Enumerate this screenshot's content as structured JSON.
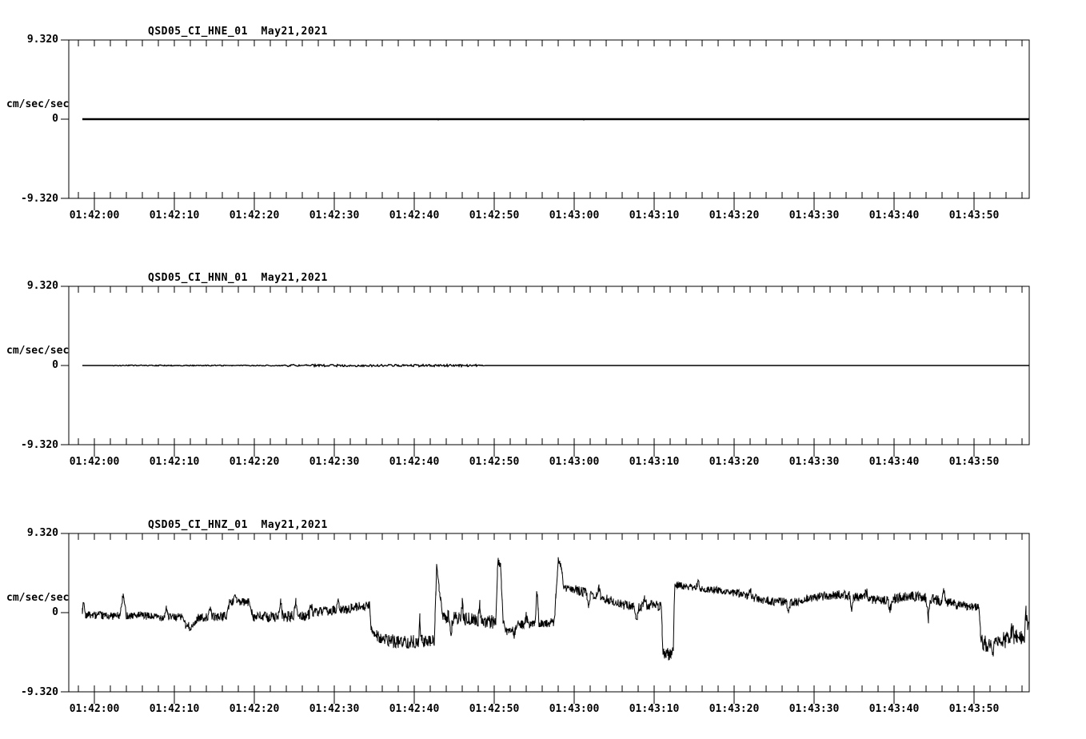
{
  "figure": {
    "background": "#ffffff",
    "foreground": "#000000",
    "unit_label": "cm/sec/sec",
    "y_max_label": "9.320",
    "y_zero_label": "0",
    "y_min_label": "-9.320",
    "x_tick_labels": [
      "01:42:00",
      "01:42:10",
      "01:42:20",
      "01:42:30",
      "01:42:40",
      "01:42:50",
      "01:43:00",
      "01:43:10",
      "01:43:20",
      "01:43:30",
      "01:43:40",
      "01:43:50"
    ]
  },
  "chart_data": [
    {
      "type": "line",
      "title": "QSD05_CI_HNE_01  May21,2021",
      "station_channel": "QSD05_CI_HNE_01",
      "date": "May21,2021",
      "ylabel": "cm/sec/sec",
      "ylim": [
        -9.32,
        9.32
      ],
      "y_ticks": [
        9.32,
        0,
        -9.32
      ],
      "x_ticks_sec": [
        0,
        10,
        20,
        30,
        40,
        50,
        60,
        70,
        80,
        90,
        100,
        110
      ],
      "x_minor_step_sec": 2,
      "x_range_sec": [
        -3.2,
        116.9
      ],
      "trace_range_sec": [
        -1.5,
        116.9
      ],
      "description": "flat trace at zero amplitude",
      "baseline": 0,
      "blips": [
        [
          43.0,
          -0.15
        ],
        [
          61.2,
          -0.15
        ]
      ]
    },
    {
      "type": "line",
      "title": "QSD05_CI_HNN_01  May21,2021",
      "station_channel": "QSD05_CI_HNN_01",
      "date": "May21,2021",
      "ylabel": "cm/sec/sec",
      "ylim": [
        -9.32,
        9.32
      ],
      "y_ticks": [
        9.32,
        0,
        -9.32
      ],
      "x_ticks_sec": [
        0,
        10,
        20,
        30,
        40,
        50,
        60,
        70,
        80,
        90,
        100,
        110
      ],
      "x_minor_step_sec": 2,
      "x_range_sec": [
        -3.2,
        116.9
      ],
      "trace_range_sec": [
        -1.5,
        116.9
      ],
      "description": "flat trace at zero with faint micro-noise fuzz between ~01:42:02 and ~01:42:49, densest 01:42:24-01:42:48",
      "baseline": 0,
      "noise_bands": [
        [
          -1.5,
          2.2,
          0.02
        ],
        [
          2.2,
          24.2,
          0.06
        ],
        [
          24.2,
          48.2,
          0.13
        ],
        [
          48.2,
          48.9,
          0.05
        ],
        [
          48.9,
          116.9,
          0.02
        ]
      ]
    },
    {
      "type": "line",
      "title": "QSD05_CI_HNZ_01  May21,2021",
      "station_channel": "QSD05_CI_HNZ_01",
      "date": "May21,2021",
      "ylabel": "cm/sec/sec",
      "ylim": [
        -9.32,
        9.32
      ],
      "y_ticks": [
        9.32,
        0,
        -9.32
      ],
      "x_ticks_sec": [
        0,
        10,
        20,
        30,
        40,
        50,
        60,
        70,
        80,
        90,
        100,
        110
      ],
      "x_minor_step_sec": 2,
      "x_range_sec": [
        -3.2,
        116.9
      ],
      "trace_range_sec": [
        -1.5,
        116.9
      ],
      "description": "noisy drifting trace: step down ~01:42:34, sharp spikes ~+6 cm/s/s at 01:42:43/01:42:50/01:42:58, deep dip ~-5 at 01:43:11 then jump to +3 with slow decay, final drop to ~-3.5 at 01:43:51",
      "base_points": [
        [
          -1.5,
          -0.2
        ],
        [
          2,
          -0.4
        ],
        [
          5,
          -0.3
        ],
        [
          8,
          -0.5
        ],
        [
          11.1,
          -0.5
        ],
        [
          11.4,
          -1.6
        ],
        [
          12.4,
          -1.6
        ],
        [
          12.9,
          -0.6
        ],
        [
          16.5,
          -0.4
        ],
        [
          16.9,
          1.2
        ],
        [
          19.4,
          1.2
        ],
        [
          19.9,
          -0.5
        ],
        [
          24,
          -0.5
        ],
        [
          27,
          -0.3
        ],
        [
          28,
          0.1
        ],
        [
          31,
          0.3
        ],
        [
          33.5,
          0.8
        ],
        [
          34.4,
          0.8
        ],
        [
          34.6,
          -1.8
        ],
        [
          36,
          -3.2
        ],
        [
          38,
          -3.4
        ],
        [
          42.5,
          -3.4
        ],
        [
          42.8,
          5.4
        ],
        [
          43.2,
          2.0
        ],
        [
          43.6,
          -0.5
        ],
        [
          45,
          -0.6
        ],
        [
          47,
          -0.8
        ],
        [
          49,
          -1.0
        ],
        [
          50.2,
          -1.1
        ],
        [
          50.45,
          6.1
        ],
        [
          50.8,
          5.3
        ],
        [
          51.1,
          -1.0
        ],
        [
          51.5,
          -2.2
        ],
        [
          53,
          -1.4
        ],
        [
          55.1,
          -1.3
        ],
        [
          55.35,
          2.9
        ],
        [
          55.6,
          -1.2
        ],
        [
          57.5,
          -1.2
        ],
        [
          58.0,
          6.1
        ],
        [
          58.35,
          5.5
        ],
        [
          58.7,
          2.9
        ],
        [
          60,
          2.7
        ],
        [
          62,
          2.2
        ],
        [
          64,
          1.6
        ],
        [
          66,
          0.9
        ],
        [
          68,
          0.6
        ],
        [
          69.5,
          0.9
        ],
        [
          70.9,
          0.8
        ],
        [
          71.1,
          -4.6
        ],
        [
          71.9,
          -4.9
        ],
        [
          72.4,
          -4.6
        ],
        [
          72.55,
          3.3
        ],
        [
          74,
          3.0
        ],
        [
          78,
          2.6
        ],
        [
          80.5,
          2.2
        ],
        [
          83,
          1.6
        ],
        [
          85,
          1.3
        ],
        [
          87.5,
          1.2
        ],
        [
          89,
          1.6
        ],
        [
          91,
          1.9
        ],
        [
          93,
          2.1
        ],
        [
          95,
          1.9
        ],
        [
          97,
          1.6
        ],
        [
          99,
          1.4
        ],
        [
          101,
          1.8
        ],
        [
          103,
          1.9
        ],
        [
          104.5,
          1.6
        ],
        [
          106,
          1.3
        ],
        [
          107.5,
          1.0
        ],
        [
          109,
          0.8
        ],
        [
          110.6,
          0.7
        ],
        [
          110.85,
          -3.4
        ],
        [
          112,
          -3.8
        ],
        [
          113.5,
          -3.2
        ],
        [
          115,
          -3.0
        ],
        [
          116.3,
          -2.6
        ],
        [
          116.9,
          -1.8
        ]
      ],
      "noise_segments": [
        [
          -1.5,
          11,
          0.45
        ],
        [
          11,
          20,
          0.5
        ],
        [
          20,
          28,
          0.65
        ],
        [
          28,
          34.4,
          0.55
        ],
        [
          34.4,
          42.5,
          0.8
        ],
        [
          42.5,
          44,
          0.5
        ],
        [
          44,
          50,
          0.8
        ],
        [
          50,
          55,
          0.5
        ],
        [
          55,
          58,
          0.55
        ],
        [
          58,
          60,
          0.45
        ],
        [
          60,
          70.9,
          0.55
        ],
        [
          70.9,
          72.5,
          0.7
        ],
        [
          72.5,
          80,
          0.4
        ],
        [
          80,
          90,
          0.5
        ],
        [
          90,
          100,
          0.55
        ],
        [
          100,
          108,
          0.6
        ],
        [
          108,
          110.7,
          0.5
        ],
        [
          110.7,
          116.9,
          1.0
        ]
      ],
      "spikes": [
        [
          -1.35,
          1.8,
          0.2
        ],
        [
          3.6,
          2.4,
          0.4
        ],
        [
          9.0,
          1.2,
          0.25
        ],
        [
          14.5,
          1.0,
          0.25
        ],
        [
          17.6,
          1.0,
          0.3
        ],
        [
          23.3,
          1.6,
          0.25
        ],
        [
          25.2,
          1.8,
          0.25
        ],
        [
          27.1,
          1.4,
          0.25
        ],
        [
          30.5,
          1.0,
          0.25
        ],
        [
          40.7,
          2.6,
          0.2
        ],
        [
          44.6,
          -1.8,
          0.25
        ],
        [
          46.0,
          1.7,
          0.2
        ],
        [
          48.2,
          2.0,
          0.2
        ],
        [
          52.5,
          -0.9,
          0.25
        ],
        [
          54.0,
          1.1,
          0.2
        ],
        [
          61.8,
          -1.5,
          0.25
        ],
        [
          63.1,
          1.0,
          0.2
        ],
        [
          67.8,
          -1.5,
          0.25
        ],
        [
          68.8,
          1.2,
          0.25
        ],
        [
          75.5,
          0.8,
          0.25
        ],
        [
          82.0,
          0.9,
          0.25
        ],
        [
          86.8,
          -1.3,
          0.25
        ],
        [
          94.7,
          -1.6,
          0.25
        ],
        [
          96.5,
          1.0,
          0.25
        ],
        [
          99.5,
          -1.2,
          0.25
        ],
        [
          104.3,
          -2.3,
          0.25
        ],
        [
          106.2,
          1.3,
          0.25
        ],
        [
          112.3,
          -1.6,
          0.25
        ],
        [
          114.8,
          1.5,
          0.25
        ],
        [
          116.5,
          2.2,
          0.2
        ]
      ]
    }
  ]
}
